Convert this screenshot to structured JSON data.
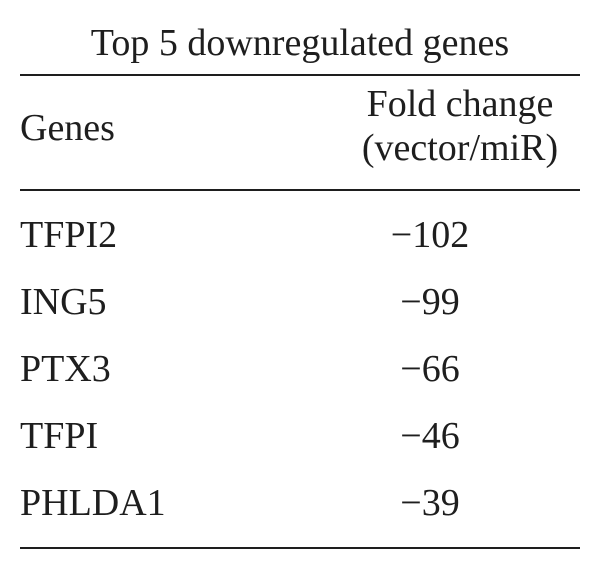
{
  "table": {
    "caption": "Top 5 downregulated genes",
    "header": {
      "genes": "Genes",
      "fold_line1": "Fold change",
      "fold_line2": "(vector/miR)"
    },
    "rows": [
      {
        "gene": "TFPI2",
        "fold": "−102"
      },
      {
        "gene": "ING5",
        "fold": "−99"
      },
      {
        "gene": "PTX3",
        "fold": "−66"
      },
      {
        "gene": "TFPI",
        "fold": "−46"
      },
      {
        "gene": "PHLDA1",
        "fold": "−39"
      }
    ]
  }
}
